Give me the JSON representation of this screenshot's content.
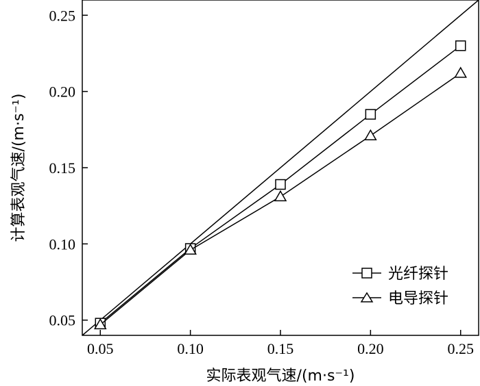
{
  "chart_data": {
    "type": "line",
    "xlabel": "实际表观气速/(m·s⁻¹)",
    "ylabel": "计算表观气速/(m·s⁻¹)",
    "xlim": [
      0.04,
      0.26
    ],
    "ylim": [
      0.04,
      0.26
    ],
    "x_ticks": [
      "0.05",
      "0.10",
      "0.15",
      "0.20",
      "0.25"
    ],
    "y_ticks": [
      "0.05",
      "0.10",
      "0.15",
      "0.20",
      "0.25"
    ],
    "x": [
      0.05,
      0.1,
      0.15,
      0.2,
      0.25
    ],
    "reference_line": {
      "from": [
        0.04,
        0.04
      ],
      "to": [
        0.26,
        0.26
      ]
    },
    "series": [
      {
        "name": "光纤探针",
        "marker": "square",
        "values": [
          0.048,
          0.097,
          0.139,
          0.185,
          0.23
        ]
      },
      {
        "name": "电导探针",
        "marker": "triangle",
        "values": [
          0.047,
          0.096,
          0.131,
          0.171,
          0.212
        ]
      }
    ],
    "legend_position": "bottom-right",
    "grid": false,
    "colors": {
      "line": "#000000",
      "background": "#ffffff"
    }
  }
}
